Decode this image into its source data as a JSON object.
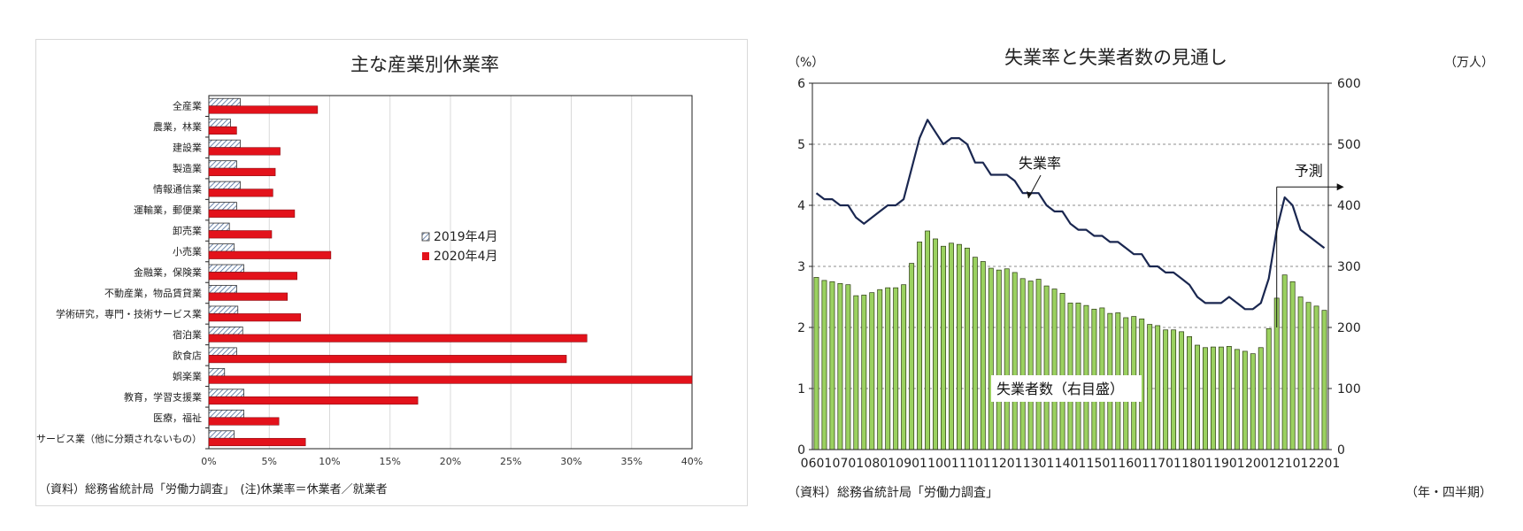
{
  "charts": [
    {
      "title": "主な産業別休業率",
      "note": "（資料）総務省統計局「労働力調査」　(注)休業率＝休業者／就業者",
      "chart_data": {
        "type": "bar",
        "orientation": "horizontal",
        "title": "主な産業別休業率",
        "categories": [
          "全産業",
          "農業，林業",
          "建設業",
          "製造業",
          "情報通信業",
          "運輸業，郵便業",
          "卸売業",
          "小売業",
          "金融業，保険業",
          "不動産業，物品賃貸業",
          "学術研究，専門・技術サービス業",
          "宿泊業",
          "飲食店",
          "娯楽業",
          "教育，学習支援業",
          "医療，福祉",
          "サービス業（他に分類されないもの）"
        ],
        "series": [
          {
            "name": "2019年4月",
            "color": "#d7e3f0",
            "values": [
              2.6,
              1.8,
              2.6,
              2.3,
              2.6,
              2.3,
              1.7,
              2.1,
              2.9,
              2.3,
              2.4,
              2.8,
              2.3,
              1.3,
              2.9,
              2.9,
              2.1
            ]
          },
          {
            "name": "2020年4月",
            "color": "#e3121b",
            "values": [
              9.0,
              2.3,
              5.9,
              5.5,
              5.3,
              7.1,
              5.2,
              10.1,
              7.3,
              6.5,
              7.6,
              31.3,
              29.6,
              40.0,
              17.3,
              5.8,
              8.0
            ]
          }
        ],
        "xlim": [
          0,
          40
        ],
        "xticks": [
          "0%",
          "5%",
          "10%",
          "15%",
          "20%",
          "25%",
          "30%",
          "35%",
          "40%"
        ],
        "legend_position": "center-right"
      }
    },
    {
      "title": "失業率と失業者数の見通し",
      "note": "（資料）総務省統計局「労働力調査」",
      "ylabel_left": "（%）",
      "ylabel_right": "（万人）",
      "xlabel": "（年・四半期）",
      "annotation_rate": "失業率",
      "annotation_count": "失業者数（右目盛）",
      "annotation_forecast": "予測",
      "chart_data": {
        "type": "bar+line",
        "title": "失業率と失業者数の見通し",
        "x": [
          "0601",
          "0602",
          "0603",
          "0604",
          "0701",
          "0702",
          "0703",
          "0704",
          "0801",
          "0802",
          "0803",
          "0804",
          "0901",
          "0902",
          "0903",
          "0904",
          "1001",
          "1002",
          "1003",
          "1004",
          "1101",
          "1102",
          "1103",
          "1104",
          "1201",
          "1202",
          "1203",
          "1204",
          "1301",
          "1302",
          "1303",
          "1304",
          "1401",
          "1402",
          "1403",
          "1404",
          "1501",
          "1502",
          "1503",
          "1504",
          "1601",
          "1602",
          "1603",
          "1604",
          "1701",
          "1702",
          "1703",
          "1704",
          "1801",
          "1802",
          "1803",
          "1804",
          "1901",
          "1902",
          "1903",
          "1904",
          "2001",
          "2002",
          "2003",
          "2004",
          "2101",
          "2102",
          "2103",
          "2104",
          "2201"
        ],
        "xtick_labels": [
          "0601",
          "0701",
          "0801",
          "0901",
          "1001",
          "1101",
          "1201",
          "1301",
          "1401",
          "1501",
          "1601",
          "1701",
          "1801",
          "1901",
          "2001",
          "2101",
          "2201"
        ],
        "series": [
          {
            "name": "失業者数（右目盛）",
            "axis": "right",
            "type": "bar",
            "color": "#9bd160",
            "values": [
              282,
              277,
              275,
              272,
              270,
              252,
              253,
              257,
              262,
              265,
              265,
              270,
              305,
              340,
              358,
              345,
              333,
              338,
              336,
              330,
              315,
              308,
              297,
              294,
              296,
              290,
              280,
              276,
              279,
              268,
              263,
              256,
              240,
              240,
              236,
              230,
              232,
              223,
              224,
              216,
              218,
              214,
              205,
              203,
              196,
              196,
              193,
              185,
              171,
              167,
              168,
              168,
              169,
              164,
              161,
              157,
              167,
              198,
              248,
              286,
              275,
              250,
              241,
              235,
              228
            ]
          },
          {
            "name": "失業率",
            "axis": "left",
            "type": "line",
            "color": "#1a2750",
            "values": [
              4.2,
              4.1,
              4.1,
              4.0,
              4.0,
              3.8,
              3.7,
              3.8,
              3.9,
              4.0,
              4.0,
              4.1,
              4.6,
              5.1,
              5.4,
              5.2,
              5.0,
              5.1,
              5.1,
              5.0,
              4.7,
              4.7,
              4.5,
              4.5,
              4.5,
              4.4,
              4.2,
              4.2,
              4.2,
              4.0,
              3.9,
              3.9,
              3.7,
              3.6,
              3.6,
              3.5,
              3.5,
              3.4,
              3.4,
              3.3,
              3.2,
              3.2,
              3.0,
              3.0,
              2.9,
              2.9,
              2.8,
              2.7,
              2.5,
              2.4,
              2.4,
              2.4,
              2.5,
              2.4,
              2.3,
              2.3,
              2.4,
              2.8,
              3.6,
              4.13,
              4.0,
              3.6,
              3.5,
              3.4,
              3.3
            ]
          }
        ],
        "ylim_left": [
          0,
          6
        ],
        "ylim_right": [
          0,
          600
        ],
        "yticks_left": [
          "0",
          "1",
          "2",
          "3",
          "4",
          "5",
          "6"
        ],
        "yticks_right": [
          "0",
          "100",
          "200",
          "300",
          "400",
          "500",
          "600"
        ],
        "forecast_start": "2003",
        "grid": "horizontal-dashed"
      }
    }
  ]
}
